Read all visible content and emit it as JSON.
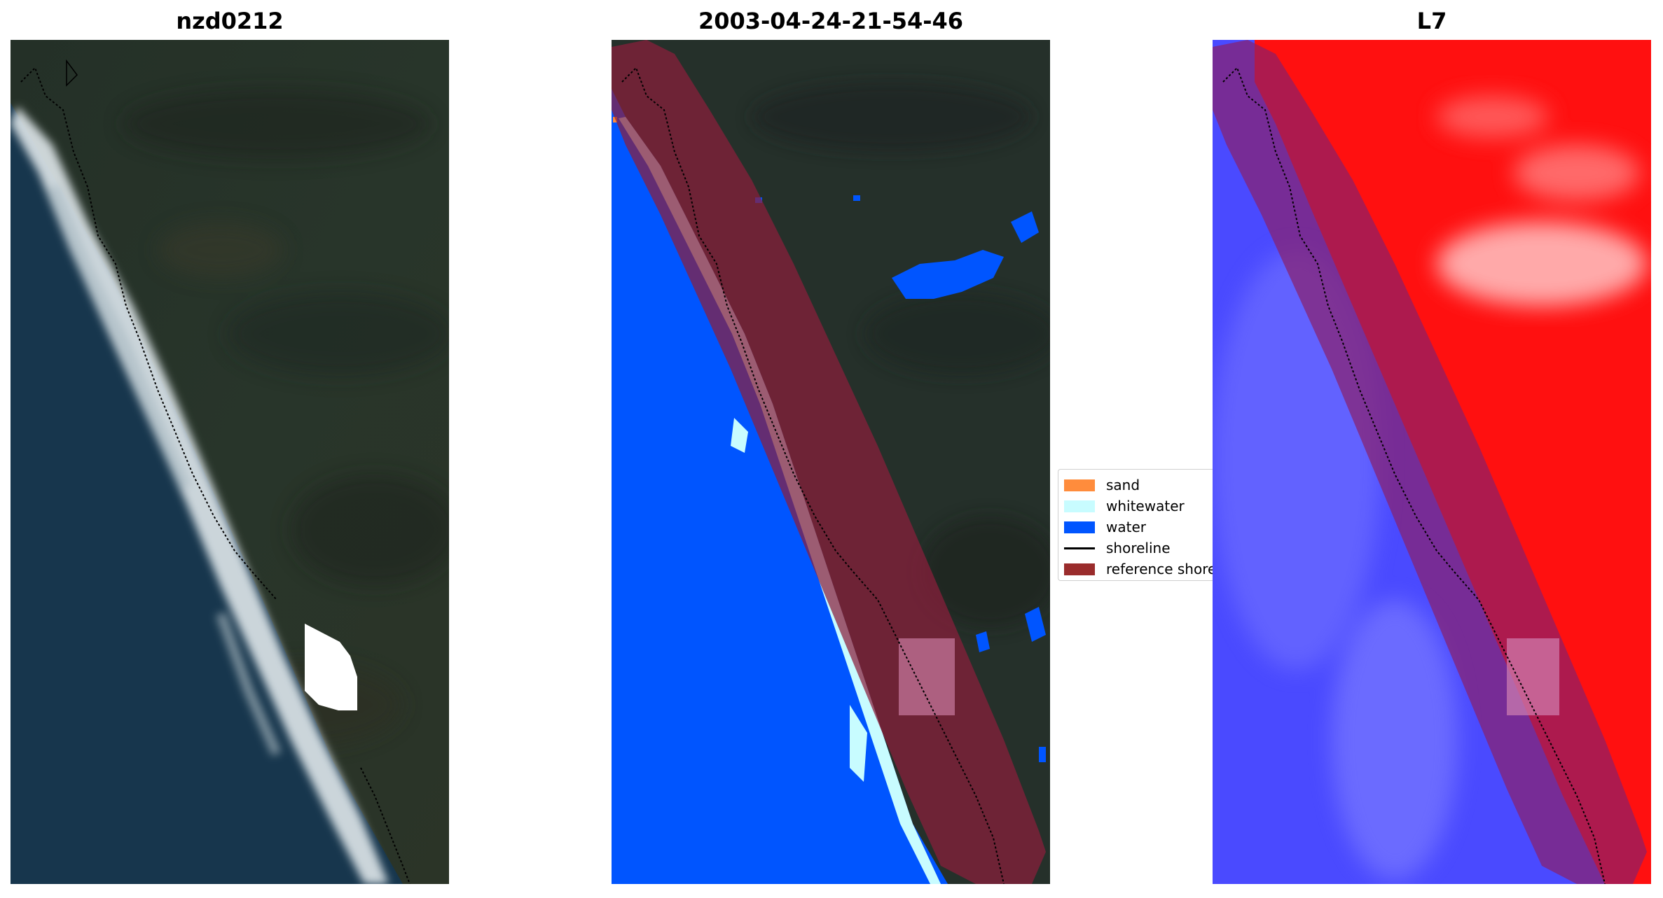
{
  "panels": [
    {
      "title": "nzd0212"
    },
    {
      "title": "2003-04-24-21-54-46"
    },
    {
      "title": "L7"
    }
  ],
  "legend": {
    "items": [
      {
        "label": "sand",
        "color": "#ff8c3c"
      },
      {
        "label": "whitewater",
        "color": "#c8fcff"
      },
      {
        "label": "water",
        "color": "#0055ff"
      },
      {
        "label": "shoreline",
        "color": "#000000"
      },
      {
        "label": "reference shoreline",
        "color": "#9a2c2c"
      }
    ]
  },
  "colors": {
    "ocean": "#17364d",
    "land": "#1f2b28",
    "surf": "#e8eef0",
    "water_class": "#0055ff",
    "whitewater_class": "#c8fcff",
    "reference_buffer": "#8a1f3c",
    "index_positive": "#ff1010",
    "index_negative": "#3a3aff"
  }
}
